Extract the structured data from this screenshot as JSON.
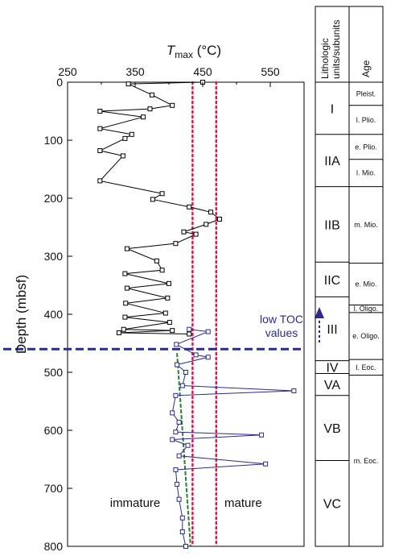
{
  "chart_data": {
    "type": "scatter",
    "title": "",
    "xlabel": {
      "prefix": "T",
      "sub": "max",
      "suffix": " (°C)"
    },
    "ylabel": "Depth (mbsf)",
    "xlim": [
      250,
      600
    ],
    "ylim": [
      0,
      800
    ],
    "y_inverted": true,
    "xticks": [
      250,
      350,
      450,
      550
    ],
    "yticks": [
      0,
      100,
      200,
      300,
      400,
      500,
      600,
      700,
      800
    ],
    "series": [
      {
        "color": "#000000",
        "x": [
          450,
          340,
          375,
          405,
          372,
          298,
          362,
          298,
          345,
          335,
          298,
          332,
          298,
          390,
          376,
          430,
          462,
          475,
          455,
          422,
          440,
          410,
          338,
          382,
          390,
          335,
          400,
          338,
          398,
          336,
          395,
          335,
          401,
          333,
          405,
          326,
          430
        ],
        "y": [
          0,
          3,
          22,
          40,
          46,
          50,
          60,
          80,
          90,
          97,
          118,
          127,
          170,
          192,
          202,
          215,
          224,
          236,
          245,
          258,
          262,
          278,
          287,
          308,
          324,
          330,
          347,
          355,
          372,
          381,
          398,
          405,
          414,
          426,
          428,
          432,
          434
        ]
      },
      {
        "color": "#2b2b8f",
        "x": [
          430,
          458,
          411,
          440,
          458,
          412,
          425,
          420,
          585,
          410,
          405,
          415,
          410,
          537,
          405,
          428,
          415,
          543,
          410,
          412,
          415,
          420,
          420,
          425
        ],
        "y": [
          426,
          430,
          452,
          470,
          474,
          487,
          500,
          523,
          532,
          540,
          570,
          586,
          603,
          608,
          616,
          626,
          644,
          658,
          668,
          693,
          719,
          751,
          775,
          800
        ]
      }
    ],
    "vlines": [
      {
        "x": 435,
        "color": "#e8104e",
        "style": "dotted"
      },
      {
        "x": 470,
        "color": "#e8104e",
        "style": "dotted"
      }
    ],
    "hline": {
      "y": 460,
      "color": "#2b2b8f",
      "style": "dashed"
    },
    "trendline": {
      "color": "#2e7d32",
      "from": [
        412,
        467
      ],
      "to": [
        432,
        800
      ]
    },
    "annotations": [
      {
        "text": "low TOC values",
        "lines": [
          "low TOC",
          "values"
        ],
        "color": "#2b2b8f",
        "arrow": "up"
      },
      {
        "text": "immature",
        "x": 350,
        "y": 725
      },
      {
        "text": "mature",
        "x": 510,
        "y": 725
      }
    ],
    "side_table": {
      "headers": [
        "Lithologic units/subunits",
        "Age"
      ],
      "units": [
        {
          "label": "I",
          "top": 0,
          "bottom": 90
        },
        {
          "label": "IIA",
          "top": 90,
          "bottom": 180
        },
        {
          "label": "IIB",
          "top": 180,
          "bottom": 310
        },
        {
          "label": "IIC",
          "top": 310,
          "bottom": 370
        },
        {
          "label": "III",
          "top": 370,
          "bottom": 480
        },
        {
          "label": "IV",
          "top": 480,
          "bottom": 502
        },
        {
          "label": "VA",
          "top": 502,
          "bottom": 540
        },
        {
          "label": "VB",
          "top": 540,
          "bottom": 652
        },
        {
          "label": "VC",
          "top": 652,
          "bottom": 800
        }
      ],
      "ages": [
        {
          "label": "Pleist.",
          "top": 0,
          "bottom": 40
        },
        {
          "label": "l. Plio.",
          "top": 40,
          "bottom": 90
        },
        {
          "label": "e. Plio.",
          "top": 90,
          "bottom": 133
        },
        {
          "label": "l. Mio.",
          "top": 133,
          "bottom": 180
        },
        {
          "label": "m. Mio.",
          "top": 180,
          "bottom": 312
        },
        {
          "label": "e. Mio.",
          "top": 312,
          "bottom": 384
        },
        {
          "label": "l. Oligo.",
          "top": 384,
          "bottom": 397
        },
        {
          "label": "e. Oligo.",
          "top": 397,
          "bottom": 478
        },
        {
          "label": "l. Eoc.",
          "top": 478,
          "bottom": 505
        },
        {
          "label": "m. Eoc.",
          "top": 505,
          "bottom": 800
        }
      ]
    }
  }
}
